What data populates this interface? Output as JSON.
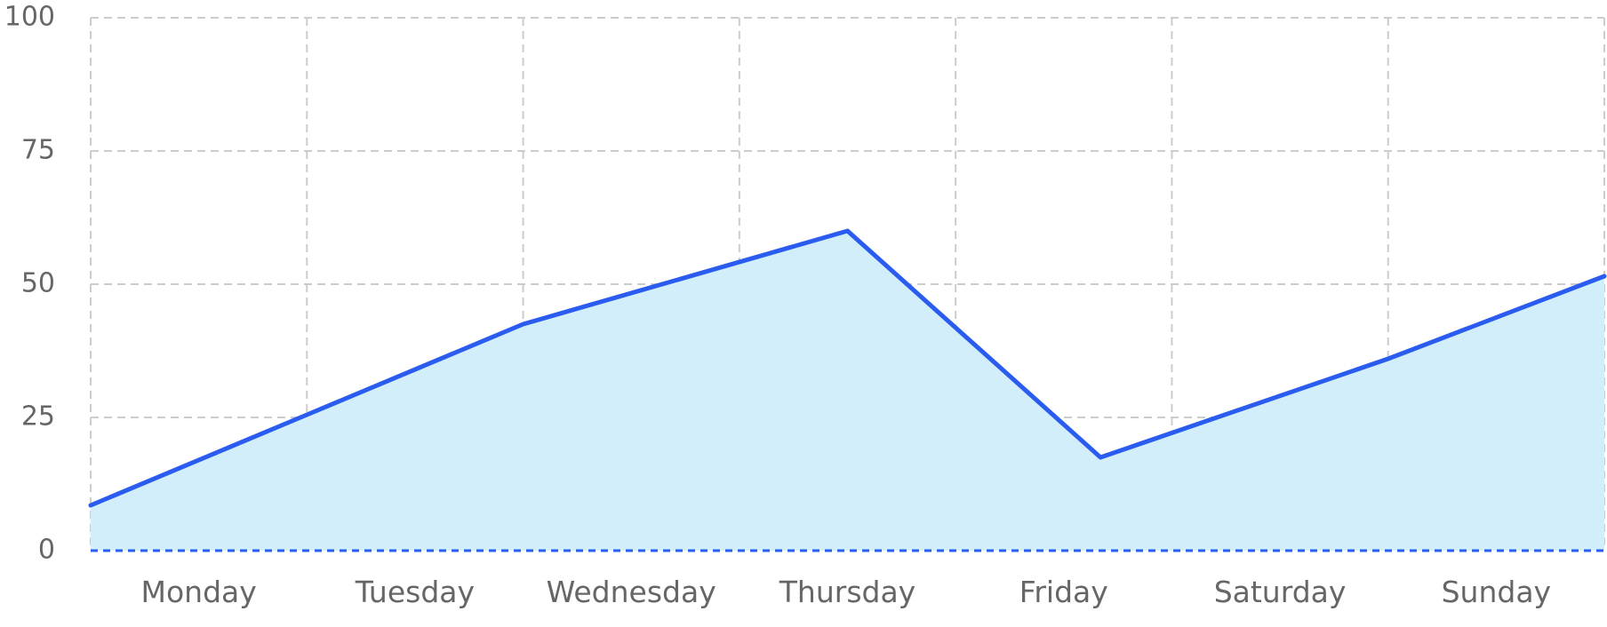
{
  "chart_data": {
    "type": "area",
    "title": "",
    "xlabel": "",
    "ylabel": "",
    "categories": [
      "Monday",
      "Tuesday",
      "Wednesday",
      "Thursday",
      "Friday",
      "Saturday",
      "Sunday"
    ],
    "x": [
      0,
      1,
      2,
      3.5,
      4.67,
      6,
      7
    ],
    "x_range": [
      0,
      7
    ],
    "values": [
      8.5,
      25.5,
      42.5,
      60,
      17.5,
      36,
      51.5
    ],
    "ylim": [
      0,
      100
    ],
    "yticks": [
      0,
      25,
      50,
      75,
      100
    ],
    "ytick_labels": [
      "0",
      "25",
      "50",
      "75",
      "100"
    ],
    "grid": true,
    "legend": "none",
    "colors": {
      "line": "#2b5cf0",
      "fill": "#d2eefb",
      "grid": "#cccccc",
      "text": "#666666"
    }
  }
}
